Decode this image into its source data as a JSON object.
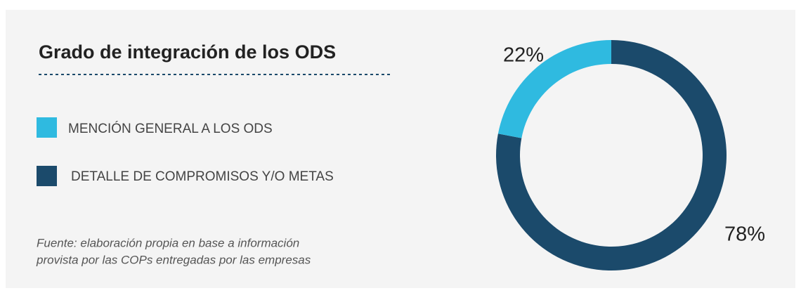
{
  "chart_data": {
    "type": "pie",
    "donut": true,
    "title": "Grado de integración de los ODS",
    "categories": [
      "MENCIÓN GENERAL A LOS ODS",
      "DETALLE DE COMPROMISOS Y/O METAS"
    ],
    "values": [
      22,
      78
    ],
    "value_labels": [
      "22%",
      "78%"
    ],
    "colors": [
      "#2fbae0",
      "#1b4a6b"
    ],
    "source": [
      "Fuente: elaboración propia en base a información",
      "provista por las COPs entregadas por las empresas"
    ]
  }
}
